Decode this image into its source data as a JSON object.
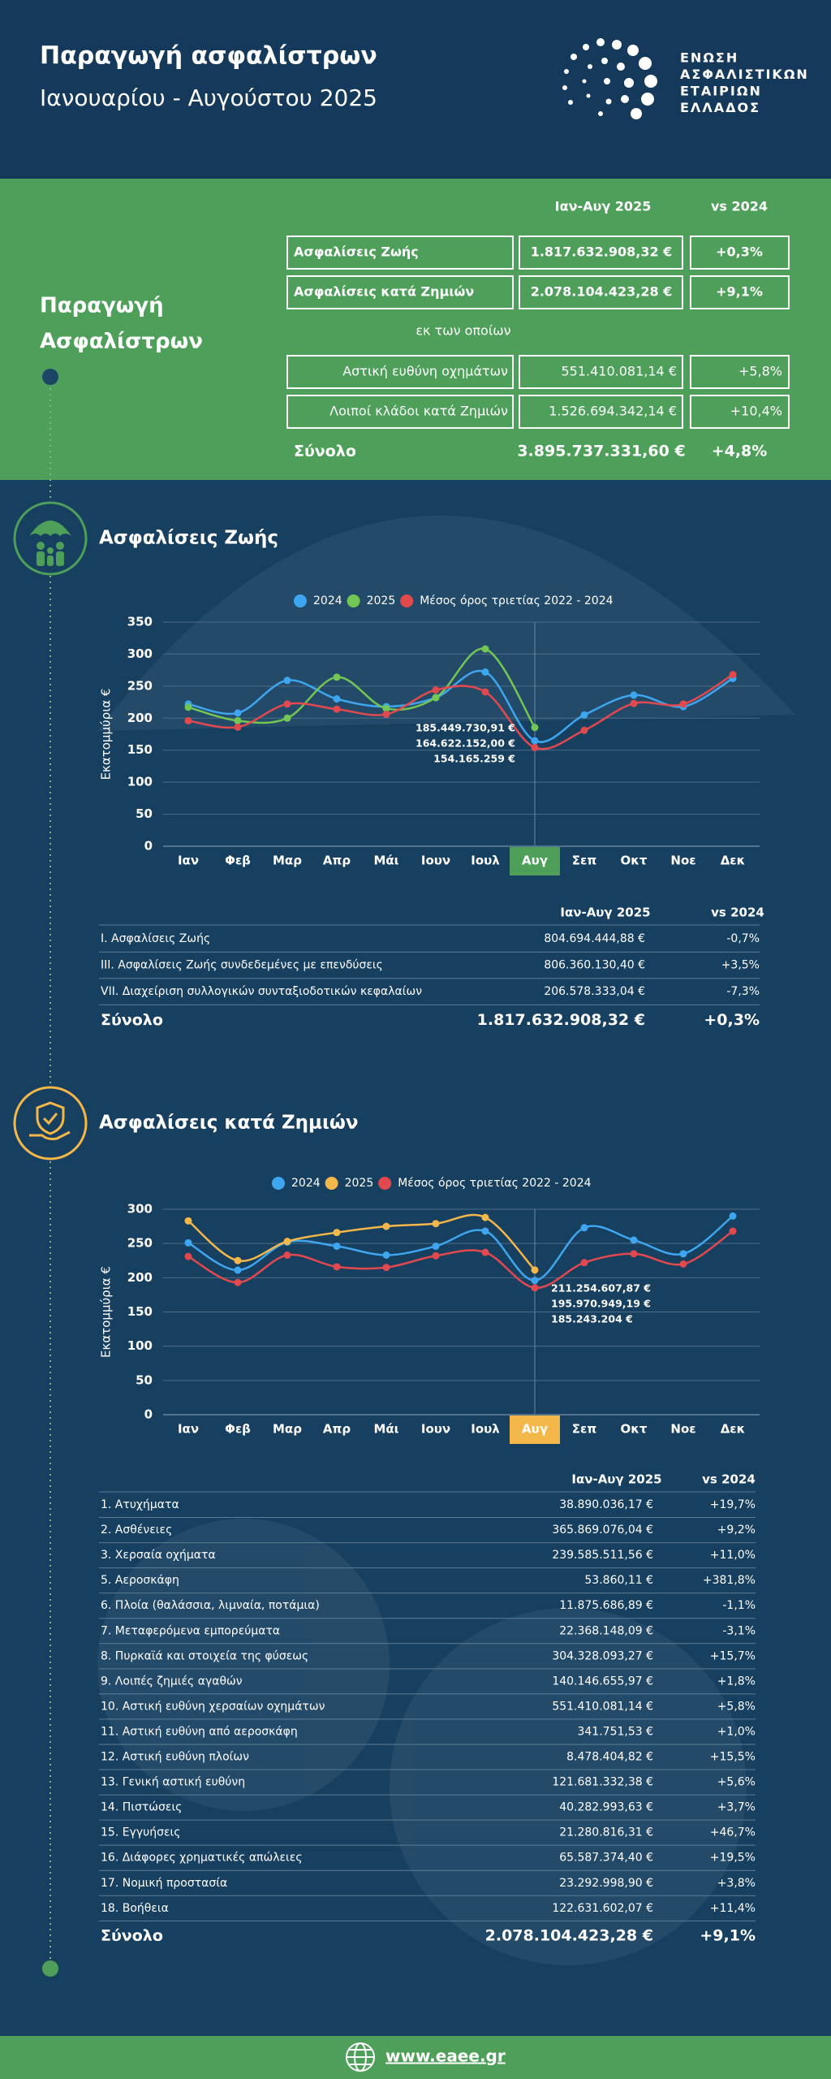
{
  "header": {
    "title": "Παραγωγή ασφαλίστρων",
    "subtitle": "Ιανουαρίου - Αυγούστου 2025",
    "logo_lines": [
      "ΕΝΩΣΗ",
      "ΑΣΦΑΛΙΣΤΙΚΩΝ",
      "ΕΤΑΙΡΙΩΝ",
      "ΕΛΛΑΔΟΣ"
    ]
  },
  "summary": {
    "title_lines": [
      "Παραγωγή",
      "Ασφαλίστρων"
    ],
    "columns": [
      "Ιαν-Αυγ 2025",
      "vs 2024"
    ],
    "rows": [
      [
        "Ασφαλίσεις Ζωής",
        "1.817.632.908,32 €",
        "+0,3%"
      ],
      [
        "Ασφαλίσεις κατά Ζημιών",
        "2.078.104.423,28 €",
        "+9,1%"
      ]
    ],
    "subheading": "εκ των οποίων",
    "sub_rows": [
      [
        "Αστική ευθύνη οχημάτων",
        "551.410.081,14 €",
        "+5,8%"
      ],
      [
        "Λοιποί κλάδοι κατά Ζημιών",
        "1.526.694.342,14 €",
        "+10,4%"
      ]
    ],
    "total": [
      "Σύνολο",
      "3.895.737.331,60 €",
      "+4,8%"
    ]
  },
  "sections": [
    "Ασφαλίσεις Ζωής",
    "Ασφαλίσεις κατά Ζημιών"
  ],
  "chart_data": [
    {
      "type": "line",
      "y_label": "Εκατομμύρια €",
      "categories": [
        "Ιαν",
        "Φεβ",
        "Μαρ",
        "Απρ",
        "Μάι",
        "Ιουν",
        "Ιουλ",
        "Αυγ",
        "Σεπ",
        "Οκτ",
        "Νοε",
        "Δεκ"
      ],
      "highlight": {
        "index": 7,
        "color": "#4e9f5a"
      },
      "series": [
        {
          "name": "2024",
          "color": "#3ea6ef",
          "values": [
            222,
            208,
            259,
            230,
            218,
            232,
            272,
            164.622152,
            205,
            236,
            218,
            262
          ],
          "value_labels": [
            null,
            null,
            null,
            null,
            null,
            null,
            null,
            "164.622.152,00 €",
            null,
            null,
            null,
            null
          ]
        },
        {
          "name": "2025",
          "color": "#72c653",
          "values": [
            217,
            196,
            200,
            264,
            215,
            232,
            308,
            185.44973091,
            null,
            null,
            null,
            null
          ],
          "value_labels": [
            null,
            null,
            null,
            null,
            null,
            null,
            null,
            "185.449.730,91 €",
            null,
            null,
            null,
            null
          ]
        },
        {
          "name": "Μέσος όρος τριετίας 2022 - 2024",
          "color": "#e2494f",
          "values": [
            196,
            186,
            222,
            214,
            206,
            244,
            241,
            154.165259,
            181,
            223,
            222,
            268
          ],
          "value_labels": [
            null,
            null,
            null,
            null,
            null,
            null,
            null,
            "154.165.259 €",
            null,
            null,
            null,
            null
          ]
        }
      ],
      "ylim": [
        0,
        350
      ],
      "yticks": [
        0,
        50,
        100,
        150,
        200,
        250,
        300,
        350
      ],
      "grid": true
    },
    {
      "type": "line",
      "y_label": "Εκατομμύρια €",
      "categories": [
        "Ιαν",
        "Φεβ",
        "Μαρ",
        "Απρ",
        "Μάι",
        "Ιουν",
        "Ιουλ",
        "Αυγ",
        "Σεπ",
        "Οκτ",
        "Νοε",
        "Δεκ"
      ],
      "highlight": {
        "index": 7,
        "color": "#f4b74a"
      },
      "series": [
        {
          "name": "2024",
          "color": "#3ea6ef",
          "values": [
            251,
            211,
            252,
            246,
            233,
            246,
            268,
            195.97094919,
            273,
            255,
            235,
            290
          ],
          "value_labels": [
            null,
            null,
            null,
            null,
            null,
            null,
            null,
            "195.970.949,19 €",
            null,
            null,
            null,
            null
          ]
        },
        {
          "name": "2025",
          "color": "#f4b74a",
          "values": [
            283,
            225,
            253,
            266,
            275,
            279,
            288,
            211.25460787,
            null,
            null,
            null,
            null
          ],
          "value_labels": [
            null,
            null,
            null,
            null,
            null,
            null,
            null,
            "211.254.607,87 €",
            null,
            null,
            null,
            null
          ]
        },
        {
          "name": "Μέσος όρος τριετίας 2022 - 2024",
          "color": "#e2494f",
          "values": [
            231,
            193,
            233,
            216,
            215,
            232,
            237,
            185.243204,
            222,
            235,
            220,
            268
          ],
          "value_labels": [
            null,
            null,
            null,
            null,
            null,
            null,
            null,
            "185.243.204 €",
            null,
            null,
            null,
            null
          ]
        }
      ],
      "ylim": [
        0,
        300
      ],
      "yticks": [
        0,
        50,
        100,
        150,
        200,
        250,
        300
      ],
      "grid": true
    }
  ],
  "tables": [
    {
      "color": "#4e9f5a",
      "columns": [
        "Ιαν-Αυγ 2025",
        "vs 2024"
      ],
      "rows": [
        [
          "I. Ασφαλίσεις  Ζωής",
          "804.694.444,88 €",
          "-0,7%"
        ],
        [
          "III. Ασφαλίσεις  Ζωής  συνδεδεμένες με επενδύσεις",
          "806.360.130,40 €",
          "+3,5%"
        ],
        [
          "VII. Διαχείριση συλλογικών συνταξιοδοτικών κεφαλαίων",
          "206.578.333,04 €",
          "-7,3%"
        ]
      ],
      "total": [
        "Σύνολο",
        "1.817.632.908,32 €",
        "+0,3%"
      ]
    },
    {
      "color": "#f4b74a",
      "columns": [
        "Ιαν-Αυγ 2025",
        "vs 2024"
      ],
      "rows": [
        [
          "1. Ατυχήματα",
          "38.890.036,17 €",
          "+19,7%"
        ],
        [
          "2. Ασθένειες",
          "365.869.076,04 €",
          "+9,2%"
        ],
        [
          "3. Χερσαία οχήματα",
          "239.585.511,56 €",
          "+11,0%"
        ],
        [
          "5. Αεροσκάφη",
          "53.860,11 €",
          "+381,8%"
        ],
        [
          "6. Πλοία (θαλάσσια, λιμναία, ποτάμια)",
          "11.875.686,89 €",
          "-1,1%"
        ],
        [
          "7. Μεταφερόμενα εμπορεύματα",
          "22.368.148,09 €",
          "-3,1%"
        ],
        [
          "8. Πυρκαϊά και στοιχεία της φύσεως",
          "304.328.093,27 €",
          "+15,7%"
        ],
        [
          "9. Λοιπές ζημιές αγαθών",
          "140.146.655,97 €",
          "+1,8%"
        ],
        [
          "10. Αστική ευθύνη χερσαίων οχημάτων",
          "551.410.081,14 €",
          "+5,8%"
        ],
        [
          "11. Αστική ευθύνη από αεροσκάφη",
          "341.751,53 €",
          "+1,0%"
        ],
        [
          "12. Αστική ευθύνη πλοίων",
          "8.478.404,82 €",
          "+15,5%"
        ],
        [
          "13. Γενική αστική ευθύνη",
          "121.681.332,38 €",
          "+5,6%"
        ],
        [
          "14. Πιστώσεις",
          "40.282.993,63 €",
          "+3,7%"
        ],
        [
          "15. Εγγυήσεις",
          "21.280.816,31 €",
          "+46,7%"
        ],
        [
          "16. Διάφορες χρηματικές απώλειες",
          "65.587.374,40 €",
          "+19,5%"
        ],
        [
          "17. Νομική προστασία",
          "23.292.998,90 €",
          "+3,8%"
        ],
        [
          "18. Βοήθεια",
          "122.631.602,07 €",
          "+11,4%"
        ]
      ],
      "total": [
        "Σύνολο",
        "2.078.104.423,28 €",
        "+9,1%"
      ]
    }
  ],
  "footer": {
    "url": "www.eaee.gr"
  }
}
